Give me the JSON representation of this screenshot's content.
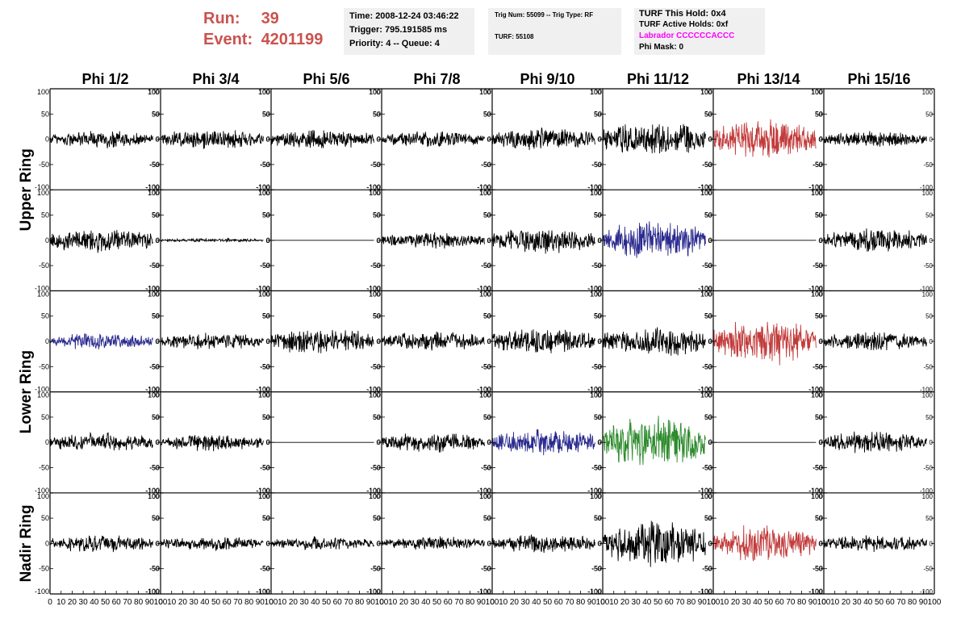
{
  "header": {
    "run_label": "Run:",
    "run_value": "39",
    "event_label": "Event:",
    "event_value": "4201199"
  },
  "info1": {
    "time": "Time: 2008-12-24 03:46:22",
    "trigger": "Trigger: 795.191585 ms",
    "priority": "Priority: 4 -- Queue: 4"
  },
  "info2": {
    "trig": "Trig Num: 55099 -- Trig Type: RF",
    "turf": "TURF: 55108"
  },
  "info3": {
    "this_hold": "TURF This Hold: 0x4",
    "active_holds": "TURF Active Holds: 0xf",
    "labrador": "Labrador CCCCCCACCC",
    "phi_mask": "Phi Mask: 0"
  },
  "colors": {
    "default": "#000000",
    "red": "#c23b3b",
    "blue": "#2a2a8f",
    "green": "#2e8b2e",
    "header_text": "#c9534f",
    "labrador_text": "#ff00ff"
  },
  "chart_data": {
    "type": "line",
    "columns": [
      "Phi 1/2",
      "Phi 3/4",
      "Phi 5/6",
      "Phi 7/8",
      "Phi 9/10",
      "Phi 11/12",
      "Phi 13/14",
      "Phi 15/16"
    ],
    "rows": [
      {
        "ring": "Upper Ring",
        "amplitudes": [
          20,
          22,
          22,
          18,
          25,
          40,
          45,
          18
        ],
        "colors": [
          "default",
          "default",
          "default",
          "default",
          "default",
          "default",
          "red",
          "default"
        ]
      },
      {
        "ring": "",
        "amplitudes": [
          28,
          4,
          0,
          18,
          28,
          45,
          0,
          28
        ],
        "colors": [
          "default",
          "default",
          "default",
          "default",
          "default",
          "blue",
          "default",
          "default"
        ]
      },
      {
        "ring": "Lower Ring",
        "amplitudes": [
          18,
          18,
          28,
          22,
          28,
          35,
          50,
          22
        ],
        "colors": [
          "blue",
          "default",
          "default",
          "default",
          "default",
          "default",
          "red",
          "default"
        ]
      },
      {
        "ring": "",
        "amplitudes": [
          22,
          18,
          0,
          22,
          30,
          55,
          0,
          25
        ],
        "colors": [
          "default",
          "default",
          "default",
          "default",
          "blue",
          "green",
          "default",
          "default"
        ]
      },
      {
        "ring": "Nadir Ring",
        "amplitudes": [
          20,
          15,
          15,
          15,
          22,
          55,
          40,
          18
        ],
        "colors": [
          "default",
          "default",
          "default",
          "default",
          "default",
          "default",
          "red",
          "default"
        ]
      }
    ],
    "ring_labels": [
      {
        "label": "Upper Ring",
        "rows": [
          0,
          1
        ]
      },
      {
        "label": "Lower Ring",
        "rows": [
          2,
          3
        ]
      },
      {
        "label": "Nadir Ring",
        "rows": [
          4
        ]
      }
    ],
    "ylim": [
      -100,
      100
    ],
    "xlim": [
      0,
      100
    ],
    "ytick_labels": [
      "100",
      "50",
      "0",
      "-50",
      "-100"
    ],
    "xtick_labels": [
      "0",
      "10",
      "20",
      "30",
      "40",
      "50",
      "60",
      "70",
      "80",
      "90",
      "100"
    ],
    "xlabel": "",
    "ylabel": "",
    "grid": false
  }
}
